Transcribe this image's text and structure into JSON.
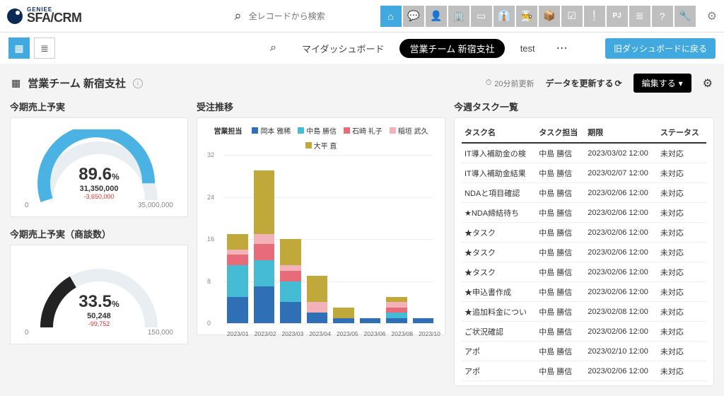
{
  "brand": {
    "sub": "GENIEE",
    "main": "SFA/CRM"
  },
  "search": {
    "placeholder": "全レコードから検索"
  },
  "navIcons": [
    "home-icon",
    "chat-icon",
    "contact-icon",
    "building-icon",
    "card-icon",
    "person-icon",
    "chef-icon",
    "box-icon",
    "check-icon",
    "alert-icon",
    "pj-icon",
    "list-icon",
    "help-icon",
    "wrench-icon"
  ],
  "subbar": {
    "tabs": {
      "my": "マイダッシュボード",
      "team": "営業チーム 新宿支社",
      "test": "test"
    },
    "back": "旧ダッシュボードに戻る"
  },
  "page": {
    "title": "営業チーム 新宿支社",
    "updated": "20分前更新",
    "refresh": "データを更新する",
    "edit": "編集する"
  },
  "gauge1": {
    "title": "今期売上予実",
    "percent": "89.6",
    "pctSuffix": "%",
    "value": "31,350,000",
    "diff": "-3,650,000",
    "min": "0",
    "max": "35,000,000",
    "fill": 0.896,
    "color": "#4ab3e3",
    "track": "#e8eef2"
  },
  "gauge2": {
    "title": "今期売上予実（商談数）",
    "percent": "33.5",
    "pctSuffix": "%",
    "value": "50,248",
    "diff": "-99,752",
    "min": "0",
    "max": "150,000",
    "fill": 0.335,
    "color": "#222",
    "track": "#e8eef2"
  },
  "barChart": {
    "title": "受注推移",
    "legendTitle": "営業担当",
    "ymax": 32,
    "yticks": [
      32,
      24,
      16,
      8,
      0
    ],
    "series": [
      {
        "name": "岡本 雅稀",
        "color": "#2e6fb5"
      },
      {
        "name": "中島 勝信",
        "color": "#45bcd4"
      },
      {
        "name": "石崎 礼子",
        "color": "#e86b7a"
      },
      {
        "name": "稲垣 武久",
        "color": "#f3b1b8"
      },
      {
        "name": "大平 直",
        "color": "#c0a93a"
      }
    ],
    "categories": [
      "2023/01",
      "2023/02",
      "2023/03",
      "2023/04",
      "2023/05",
      "2023/06",
      "2023/08",
      "2023/10"
    ],
    "stacks": [
      [
        5,
        6,
        2,
        1,
        3
      ],
      [
        7,
        5,
        3,
        2,
        12
      ],
      [
        4,
        4,
        2,
        1,
        5
      ],
      [
        2,
        0,
        0,
        2,
        5
      ],
      [
        1,
        0,
        0,
        0,
        2
      ],
      [
        1,
        0,
        0,
        0,
        0
      ],
      [
        1,
        1,
        1,
        1,
        1
      ],
      [
        1,
        0,
        0,
        0,
        0
      ]
    ]
  },
  "tasks": {
    "title": "今週タスク一覧",
    "headers": {
      "name": "タスク名",
      "owner": "タスク担当",
      "due": "期限",
      "status": "ステータス"
    },
    "rows": [
      {
        "name": "IT導入補助金の検",
        "owner": "中島 勝信",
        "due": "2023/03/02 12:00",
        "status": "未対応"
      },
      {
        "name": "IT導入補助金結果",
        "owner": "中島 勝信",
        "due": "2023/02/07 12:00",
        "status": "未対応"
      },
      {
        "name": "NDAと項目確認",
        "owner": "中島 勝信",
        "due": "2023/02/06 12:00",
        "status": "未対応"
      },
      {
        "name": "★NDA締結待ち",
        "owner": "中島 勝信",
        "due": "2023/02/06 12:00",
        "status": "未対応"
      },
      {
        "name": "★タスク",
        "owner": "中島 勝信",
        "due": "2023/02/06 12:00",
        "status": "未対応"
      },
      {
        "name": "★タスク",
        "owner": "中島 勝信",
        "due": "2023/02/06 12:00",
        "status": "未対応"
      },
      {
        "name": "★タスク",
        "owner": "中島 勝信",
        "due": "2023/02/06 12:00",
        "status": "未対応"
      },
      {
        "name": "★申込書作成",
        "owner": "中島 勝信",
        "due": "2023/02/06 12:00",
        "status": "未対応"
      },
      {
        "name": "★追加料金につい",
        "owner": "中島 勝信",
        "due": "2023/02/08 12:00",
        "status": "未対応"
      },
      {
        "name": "ご状況確認",
        "owner": "中島 勝信",
        "due": "2023/02/06 12:00",
        "status": "未対応"
      },
      {
        "name": "アポ",
        "owner": "中島 勝信",
        "due": "2023/02/10 12:00",
        "status": "未対応"
      },
      {
        "name": "アポ",
        "owner": "中島 勝信",
        "due": "2023/02/06 12:00",
        "status": "未対応"
      }
    ]
  }
}
